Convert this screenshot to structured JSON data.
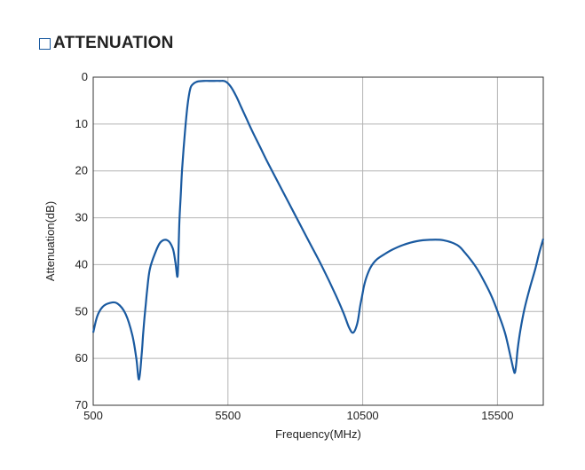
{
  "heading": {
    "icon": "square-outline-icon",
    "title": "ATTENUATION"
  },
  "colors": {
    "line": "#1a5aa0",
    "grid": "#b4b4b4",
    "frame": "#333333",
    "heading_box": "#1a5aa0"
  },
  "chart_data": {
    "type": "line",
    "title": "ATTENUATION",
    "xlabel": "Frequency(MHz)",
    "ylabel": "Attenuation(dB)",
    "xlim": [
      500,
      17200
    ],
    "ylim": [
      70,
      0
    ],
    "y_inverted": true,
    "grid": true,
    "x_ticks": [
      500,
      5500,
      10500,
      15500
    ],
    "x_tick_labels": [
      "500",
      "5500",
      "10500",
      "15500"
    ],
    "y_ticks": [
      0,
      10,
      20,
      30,
      40,
      50,
      60,
      70
    ],
    "y_tick_labels": [
      "0",
      "10",
      "20",
      "30",
      "40",
      "50",
      "60",
      "70"
    ],
    "series": [
      {
        "x": [
          500,
          650,
          850,
          1100,
          1400,
          1700,
          1950,
          2100,
          2200,
          2300,
          2350,
          2400,
          2450,
          2500,
          2600,
          2800,
          3000,
          3250,
          3450,
          3550,
          3630,
          3670,
          3700,
          3750,
          3800,
          3900,
          4000,
          4100,
          4200,
          4300,
          4400,
          4600,
          4800,
          5000,
          5200,
          5400,
          5600,
          5800,
          6000,
          6200,
          6400,
          6700,
          7000,
          7500,
          8000,
          8500,
          9000,
          9500,
          9800,
          10000,
          10150,
          10300,
          10400,
          10450,
          10500,
          10550,
          10650,
          10800,
          11000,
          11300,
          11600,
          12000,
          12500,
          13000,
          13500,
          14000,
          14300,
          14700,
          15000,
          15300,
          15600,
          15800,
          16000,
          16100,
          16150,
          16200,
          16250,
          16350,
          16500,
          16700,
          16900,
          17050,
          17200
        ],
        "y": [
          54.5,
          51.0,
          49.0,
          48.2,
          48.3,
          50.5,
          55.0,
          60.0,
          64.5,
          59.0,
          55.0,
          51.5,
          48.5,
          45.5,
          41.0,
          37.5,
          35.2,
          34.8,
          36.5,
          39.5,
          42.5,
          36.0,
          30.5,
          25.0,
          19.5,
          12.0,
          6.0,
          2.5,
          1.5,
          1.1,
          0.9,
          0.8,
          0.8,
          0.8,
          0.8,
          0.9,
          2.0,
          4.0,
          6.5,
          9.0,
          11.5,
          15.0,
          18.5,
          24.0,
          29.5,
          35.0,
          40.5,
          46.5,
          50.5,
          53.5,
          54.5,
          52.5,
          49.0,
          47.5,
          46.0,
          44.5,
          42.5,
          40.5,
          39.0,
          37.8,
          36.8,
          35.8,
          35.0,
          34.7,
          34.8,
          35.8,
          37.5,
          40.5,
          43.5,
          47.0,
          51.5,
          55.0,
          60.0,
          62.5,
          63.0,
          61.0,
          58.0,
          54.0,
          49.5,
          45.0,
          41.0,
          37.5,
          34.5
        ]
      }
    ]
  }
}
